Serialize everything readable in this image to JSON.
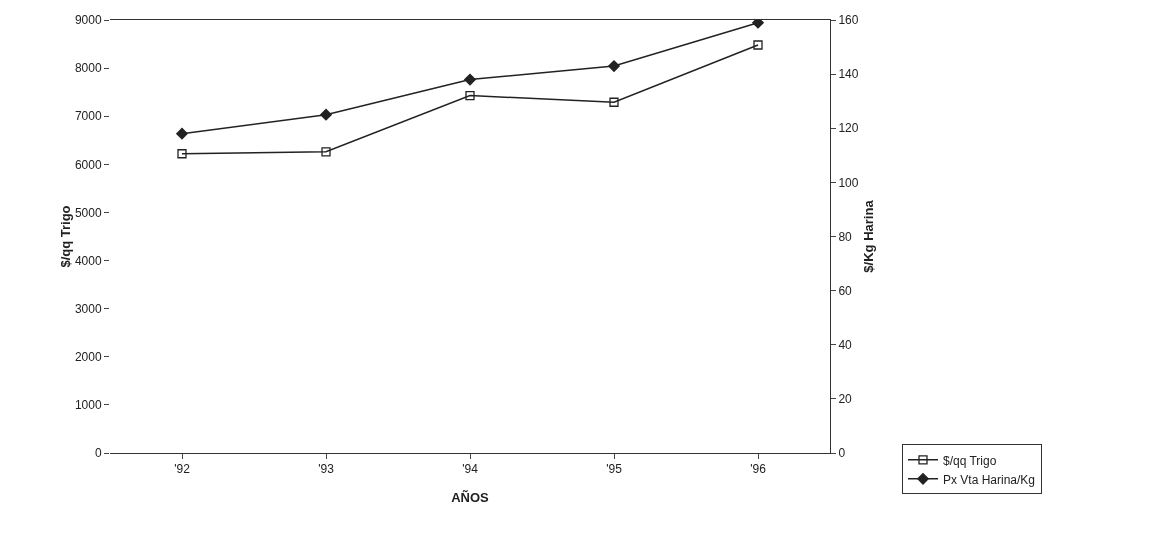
{
  "chart_data": {
    "type": "line",
    "xlabel": "AÑOS",
    "ylabel": "$/qq Trigo",
    "y2label": "$/Kg Harina",
    "categories": [
      "'92",
      "'93",
      "'94",
      "'95",
      "'96"
    ],
    "series": [
      {
        "name": "$/qq Trigo",
        "color": "#222222",
        "marker": "square",
        "values": [
          6220,
          6260,
          7430,
          7290,
          8480
        ]
      },
      {
        "name": "Px Vta Harina/Kg",
        "color": "#222222",
        "marker": "diamond",
        "axis": "y2",
        "values": [
          118,
          125,
          138,
          143,
          159
        ]
      }
    ],
    "ylim": [
      0,
      9000
    ],
    "yticks": [
      0,
      1000,
      2000,
      3000,
      4000,
      5000,
      6000,
      7000,
      8000,
      9000
    ],
    "y2lim": [
      0,
      160
    ],
    "y2ticks": [
      0,
      20,
      40,
      60,
      80,
      100,
      120,
      140,
      160
    ],
    "grid": false,
    "legend": "bottom right"
  }
}
